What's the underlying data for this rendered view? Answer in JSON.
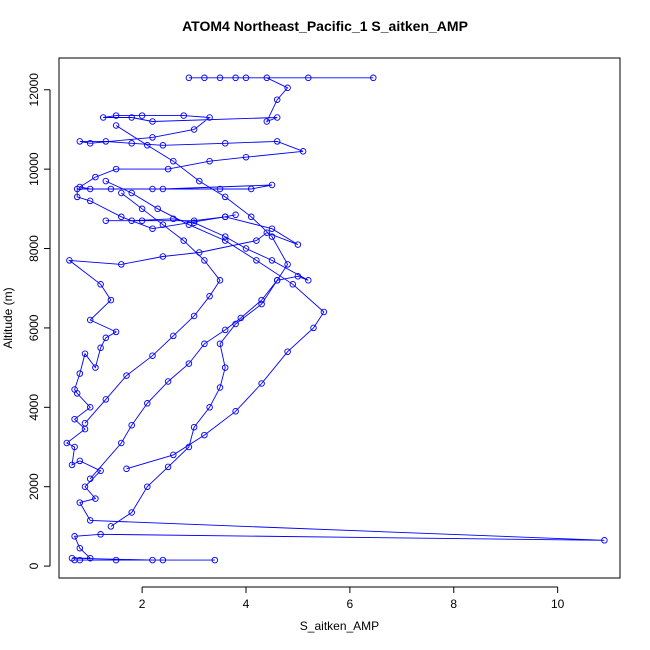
{
  "chart_data": {
    "type": "scatter",
    "title": "ATOM4 Northeast_Pacific_1 S_aitken_AMP",
    "xlabel": "S_aitken_AMP",
    "ylabel": "Altitude (m)",
    "xlim": [
      0.4,
      11.2
    ],
    "ylim": [
      -300,
      12800
    ],
    "x_ticks": [
      2,
      4,
      6,
      8,
      10
    ],
    "y_ticks": [
      0,
      2000,
      4000,
      6000,
      8000,
      10000,
      12000
    ],
    "color": "#0000ff",
    "point_style": "open-circle",
    "connected": true,
    "grid": false,
    "series": [
      {
        "values": [
          [
            0.7,
            150
          ],
          [
            1.5,
            150
          ],
          [
            3.4,
            150
          ],
          [
            2.4,
            150
          ],
          [
            0.8,
            150
          ],
          [
            2.2,
            150
          ],
          [
            0.65,
            200
          ],
          [
            1.0,
            200
          ],
          [
            0.8,
            450
          ],
          [
            0.7,
            750
          ],
          [
            1.2,
            800
          ],
          [
            10.9,
            650
          ],
          [
            1.0,
            1150
          ],
          [
            0.8,
            1600
          ],
          [
            1.1,
            1700
          ],
          [
            0.9,
            2000
          ],
          [
            1.2,
            2400
          ],
          [
            0.8,
            2650
          ],
          [
            0.65,
            2550
          ],
          [
            0.7,
            3000
          ],
          [
            0.55,
            3100
          ],
          [
            0.9,
            3450
          ],
          [
            0.7,
            3700
          ],
          [
            1.0,
            4000
          ],
          [
            0.75,
            4350
          ],
          [
            0.7,
            4450
          ],
          [
            0.8,
            4850
          ],
          [
            0.9,
            5350
          ],
          [
            1.1,
            5000
          ],
          [
            1.2,
            5500
          ],
          [
            1.3,
            5750
          ],
          [
            1.5,
            5900
          ],
          [
            1.0,
            6200
          ],
          [
            1.4,
            6700
          ],
          [
            1.2,
            7100
          ],
          [
            0.6,
            7700
          ],
          [
            1.6,
            7600
          ],
          [
            2.4,
            7800
          ],
          [
            3.1,
            7900
          ],
          [
            4.2,
            8200
          ],
          [
            4.4,
            8400
          ],
          [
            5.0,
            8100
          ],
          [
            4.5,
            8500
          ],
          [
            3.6,
            8800
          ],
          [
            2.2,
            8500
          ],
          [
            1.6,
            8800
          ],
          [
            1.0,
            9200
          ],
          [
            0.75,
            9300
          ],
          [
            0.75,
            9500
          ],
          [
            2.4,
            9500
          ],
          [
            4.5,
            9600
          ],
          [
            4.1,
            9500
          ],
          [
            3.5,
            9500
          ],
          [
            2.2,
            9500
          ],
          [
            1.4,
            9500
          ],
          [
            1.0,
            9500
          ],
          [
            0.8,
            9550
          ],
          [
            1.1,
            9800
          ],
          [
            1.5,
            10000
          ],
          [
            2.5,
            10000
          ],
          [
            3.3,
            10200
          ],
          [
            4.0,
            10300
          ],
          [
            5.1,
            10450
          ],
          [
            4.6,
            10700
          ],
          [
            3.6,
            10650
          ],
          [
            2.4,
            10600
          ],
          [
            1.8,
            10650
          ],
          [
            1.3,
            10700
          ],
          [
            0.8,
            10700
          ],
          [
            1.0,
            10650
          ],
          [
            2.2,
            10800
          ],
          [
            3.0,
            11000
          ],
          [
            3.3,
            11300
          ],
          [
            2.8,
            11350
          ],
          [
            2.0,
            11350
          ],
          [
            1.5,
            11350
          ],
          [
            1.25,
            11300
          ],
          [
            1.8,
            11300
          ],
          [
            2.2,
            11200
          ],
          [
            4.6,
            11300
          ],
          [
            4.4,
            11200
          ],
          [
            4.6,
            11750
          ],
          [
            4.8,
            12050
          ],
          [
            4.4,
            12300
          ],
          [
            3.2,
            12300
          ],
          [
            2.9,
            12300
          ],
          [
            3.8,
            12300
          ],
          [
            5.2,
            12300
          ],
          [
            6.45,
            12300
          ],
          [
            3.5,
            12300
          ],
          [
            4.0,
            12300
          ]
        ]
      },
      {
        "values": [
          [
            1.0,
            2200
          ],
          [
            1.6,
            3100
          ],
          [
            1.8,
            3550
          ],
          [
            2.1,
            4100
          ],
          [
            2.5,
            4650
          ],
          [
            2.9,
            5100
          ],
          [
            3.2,
            5600
          ],
          [
            3.6,
            5950
          ],
          [
            3.9,
            6250
          ],
          [
            4.3,
            6700
          ],
          [
            4.6,
            7200
          ],
          [
            5.0,
            7300
          ],
          [
            5.2,
            7200
          ],
          [
            4.5,
            7700
          ],
          [
            4.0,
            8000
          ],
          [
            3.6,
            8300
          ],
          [
            3.0,
            8650
          ],
          [
            2.6,
            8750
          ],
          [
            1.8,
            8700
          ],
          [
            1.3,
            8700
          ],
          [
            2.0,
            8700
          ],
          [
            3.0,
            8700
          ],
          [
            3.6,
            8800
          ],
          [
            3.8,
            8850
          ]
        ]
      },
      {
        "values": [
          [
            1.4,
            1000
          ],
          [
            1.8,
            1350
          ],
          [
            2.1,
            2000
          ],
          [
            2.5,
            2500
          ],
          [
            2.9,
            3000
          ],
          [
            3.0,
            3500
          ],
          [
            3.3,
            4000
          ],
          [
            3.5,
            4500
          ],
          [
            3.6,
            5000
          ],
          [
            3.5,
            5600
          ],
          [
            3.8,
            6100
          ],
          [
            4.3,
            6600
          ],
          [
            4.6,
            7200
          ],
          [
            4.8,
            7600
          ],
          [
            4.5,
            8300
          ],
          [
            4.1,
            8800
          ],
          [
            3.6,
            9300
          ],
          [
            3.1,
            9700
          ],
          [
            2.6,
            10200
          ],
          [
            2.1,
            10600
          ],
          [
            1.5,
            11100
          ]
        ]
      },
      {
        "values": [
          [
            1.7,
            2450
          ],
          [
            2.6,
            2800
          ],
          [
            3.2,
            3300
          ],
          [
            3.8,
            3900
          ],
          [
            4.3,
            4600
          ],
          [
            4.8,
            5400
          ],
          [
            5.3,
            6000
          ],
          [
            5.5,
            6400
          ],
          [
            4.9,
            7100
          ],
          [
            4.2,
            7700
          ],
          [
            3.6,
            8200
          ],
          [
            2.9,
            8600
          ],
          [
            2.3,
            9000
          ],
          [
            1.8,
            9400
          ],
          [
            1.3,
            9700
          ]
        ]
      },
      {
        "values": [
          [
            0.9,
            3600
          ],
          [
            1.3,
            4200
          ],
          [
            1.7,
            4800
          ],
          [
            2.2,
            5300
          ],
          [
            2.6,
            5800
          ],
          [
            3.0,
            6300
          ],
          [
            3.3,
            6800
          ],
          [
            3.5,
            7200
          ],
          [
            3.2,
            7700
          ],
          [
            2.8,
            8200
          ],
          [
            2.4,
            8600
          ],
          [
            2.0,
            9000
          ],
          [
            1.6,
            9400
          ]
        ]
      }
    ]
  }
}
